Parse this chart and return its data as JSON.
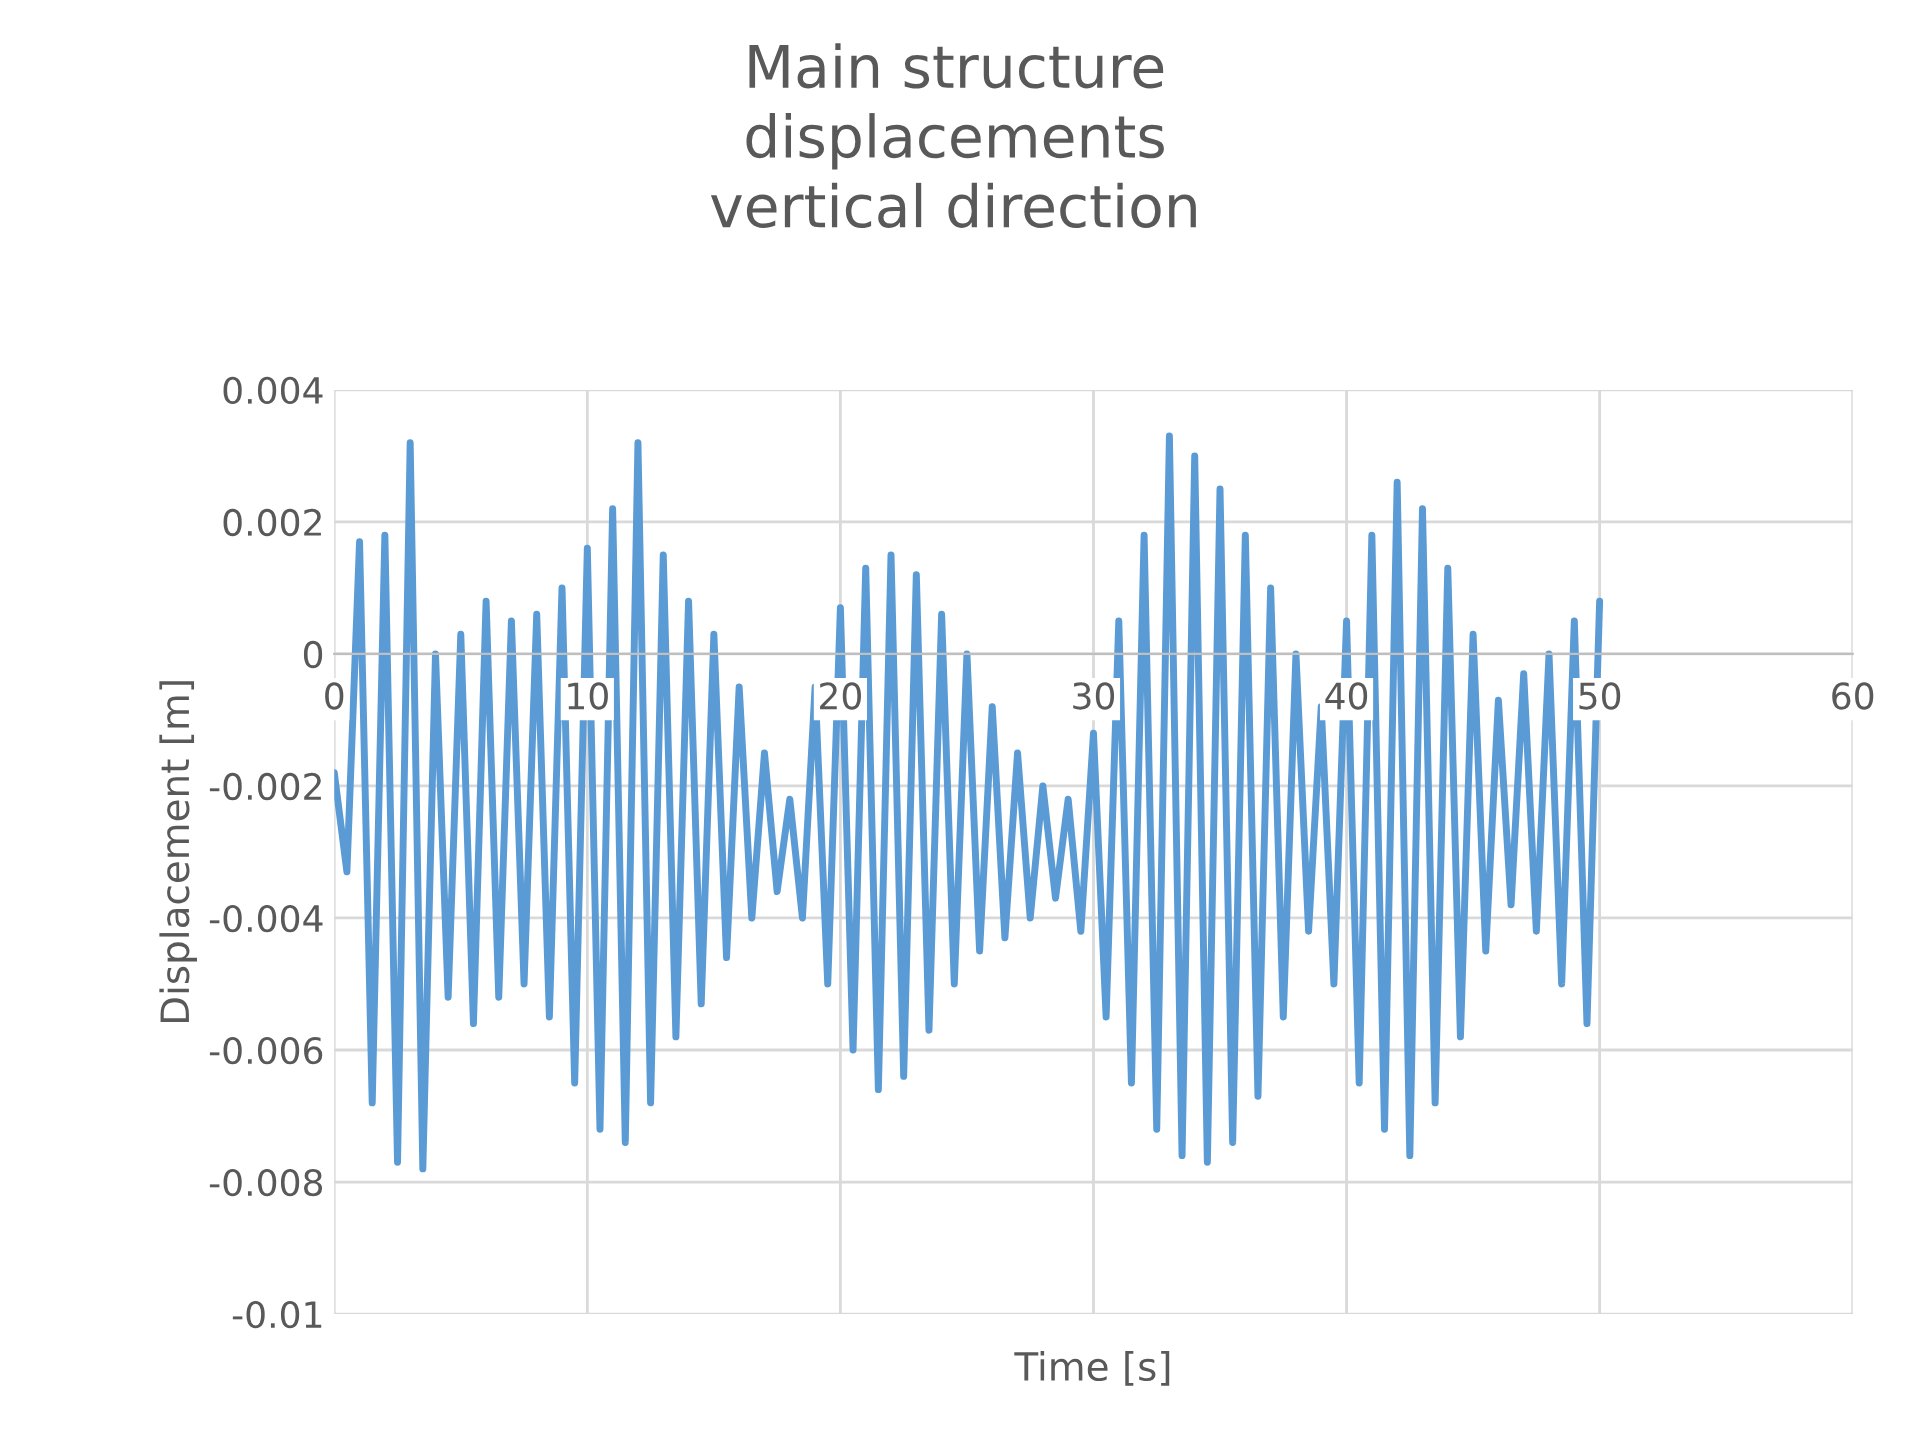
{
  "chart_data": {
    "type": "line",
    "title": "Main structure\ndisplacements\nvertical direction",
    "xlabel": "Time [s]",
    "ylabel": "Displacement [m]",
    "xlim": [
      0,
      60
    ],
    "xticks": [
      0,
      10,
      20,
      30,
      40,
      50,
      60
    ],
    "ylim": [
      -0.01,
      0.004
    ],
    "yticks": [
      -0.01,
      -0.008,
      -0.006,
      -0.004,
      -0.002,
      0,
      0.002,
      0.004
    ],
    "grid": true,
    "series": [
      {
        "color": "#5b9bd5",
        "x": [
          0,
          0.5,
          1,
          1.5,
          2,
          2.5,
          3,
          3.5,
          4,
          4.5,
          5,
          5.5,
          6,
          6.5,
          7,
          7.5,
          8,
          8.5,
          9,
          9.5,
          10,
          10.5,
          11,
          11.5,
          12,
          12.5,
          13,
          13.5,
          14,
          14.5,
          15,
          15.5,
          16,
          16.5,
          17,
          17.5,
          18,
          18.5,
          19,
          19.5,
          20,
          20.5,
          21,
          21.5,
          22,
          22.5,
          23,
          23.5,
          24,
          24.5,
          25,
          25.5,
          26,
          26.5,
          27,
          27.5,
          28,
          28.5,
          29,
          29.5,
          30,
          30.5,
          31,
          31.5,
          32,
          32.5,
          33,
          33.5,
          34,
          34.5,
          35,
          35.5,
          36,
          36.5,
          37,
          37.5,
          38,
          38.5,
          39,
          39.5,
          40,
          40.5,
          41,
          41.5,
          42,
          42.5,
          43,
          43.5,
          44,
          44.5,
          45,
          45.5,
          46,
          46.5,
          47,
          47.5,
          48,
          48.5,
          49,
          49.5,
          50
        ],
        "values": [
          -0.0018,
          -0.0033,
          0.0017,
          -0.0068,
          0.0018,
          -0.0077,
          0.0032,
          -0.0078,
          0.0,
          -0.0052,
          0.0003,
          -0.0056,
          0.0008,
          -0.0052,
          0.0005,
          -0.005,
          0.0006,
          -0.0055,
          0.001,
          -0.0065,
          0.0016,
          -0.0072,
          0.0022,
          -0.0074,
          0.0032,
          -0.0068,
          0.0015,
          -0.0058,
          0.0008,
          -0.0053,
          0.0003,
          -0.0046,
          -0.0005,
          -0.004,
          -0.0015,
          -0.0036,
          -0.0022,
          -0.004,
          -0.0005,
          -0.005,
          0.0007,
          -0.006,
          0.0013,
          -0.0066,
          0.0015,
          -0.0064,
          0.0012,
          -0.0057,
          0.0006,
          -0.005,
          0.0,
          -0.0045,
          -0.0008,
          -0.0043,
          -0.0015,
          -0.004,
          -0.002,
          -0.0037,
          -0.0022,
          -0.0042,
          -0.0012,
          -0.0055,
          0.0005,
          -0.0065,
          0.0018,
          -0.0072,
          0.0033,
          -0.0076,
          0.003,
          -0.0077,
          0.0025,
          -0.0074,
          0.0018,
          -0.0067,
          0.001,
          -0.0055,
          0.0,
          -0.0042,
          -0.0008,
          -0.005,
          0.0005,
          -0.0065,
          0.0018,
          -0.0072,
          0.0026,
          -0.0076,
          0.0022,
          -0.0068,
          0.0013,
          -0.0058,
          0.0003,
          -0.0045,
          -0.0007,
          -0.0038,
          -0.0003,
          -0.0042,
          0.0,
          -0.005,
          0.0005,
          -0.0056,
          0.0008
        ]
      }
    ]
  }
}
